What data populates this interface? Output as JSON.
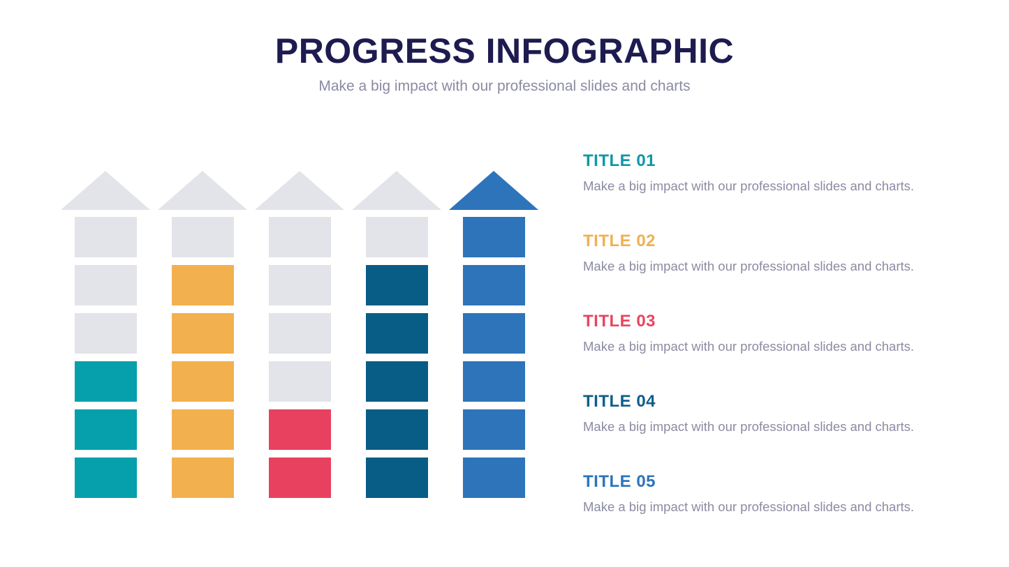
{
  "header": {
    "title": "PROGRESS INFOGRAPHIC",
    "subtitle": "Make a big impact with our professional slides and charts"
  },
  "palette": {
    "gray": "#e2e4e9",
    "teal": "#05a0ab",
    "orange": "#f3b04f",
    "red": "#e8415f",
    "navy": "#085d87",
    "blue": "#2d74ba"
  },
  "chart_data": {
    "type": "bar",
    "title": "PROGRESS INFOGRAPHIC",
    "subtitle": "Make a big impact with our professional slides and charts",
    "orientation": "vertical-arrow-towers",
    "max_segments": 6,
    "categories": [
      "TITLE 01",
      "TITLE 02",
      "TITLE 03",
      "TITLE 04",
      "TITLE 05"
    ],
    "values": [
      3,
      5,
      2,
      5,
      6
    ],
    "towers": [
      {
        "label": "TITLE 01",
        "filled": 3,
        "fill_color": "teal",
        "head_color": "gray",
        "segments_top_to_bottom": [
          "gray",
          "gray",
          "gray",
          "teal",
          "teal",
          "teal"
        ]
      },
      {
        "label": "TITLE 02",
        "filled": 5,
        "fill_color": "orange",
        "head_color": "gray",
        "segments_top_to_bottom": [
          "gray",
          "orange",
          "orange",
          "orange",
          "orange",
          "orange"
        ]
      },
      {
        "label": "TITLE 03",
        "filled": 2,
        "fill_color": "red",
        "head_color": "gray",
        "segments_top_to_bottom": [
          "gray",
          "gray",
          "gray",
          "gray",
          "red",
          "red"
        ]
      },
      {
        "label": "TITLE 04",
        "filled": 5,
        "fill_color": "navy",
        "head_color": "gray",
        "segments_top_to_bottom": [
          "gray",
          "navy",
          "navy",
          "navy",
          "navy",
          "navy"
        ]
      },
      {
        "label": "TITLE 05",
        "filled": 6,
        "fill_color": "blue",
        "head_color": "blue",
        "segments_top_to_bottom": [
          "blue",
          "blue",
          "blue",
          "blue",
          "blue",
          "blue"
        ]
      }
    ]
  },
  "legend": {
    "items": [
      {
        "title": "TITLE 01",
        "title_hex": "#0f97a7",
        "description": "Make a big impact with our professional slides and charts."
      },
      {
        "title": "TITLE 02",
        "title_hex": "#f0b052",
        "description": "Make a big impact with our professional slides and charts."
      },
      {
        "title": "TITLE 03",
        "title_hex": "#e8455f",
        "description": "Make a big impact with our professional slides and charts."
      },
      {
        "title": "TITLE 04",
        "title_hex": "#0e5e8a",
        "description": "Make a big impact with our professional slides and charts."
      },
      {
        "title": "TITLE 05",
        "title_hex": "#2d74ba",
        "description": "Make a big impact with our professional slides and charts."
      }
    ]
  }
}
